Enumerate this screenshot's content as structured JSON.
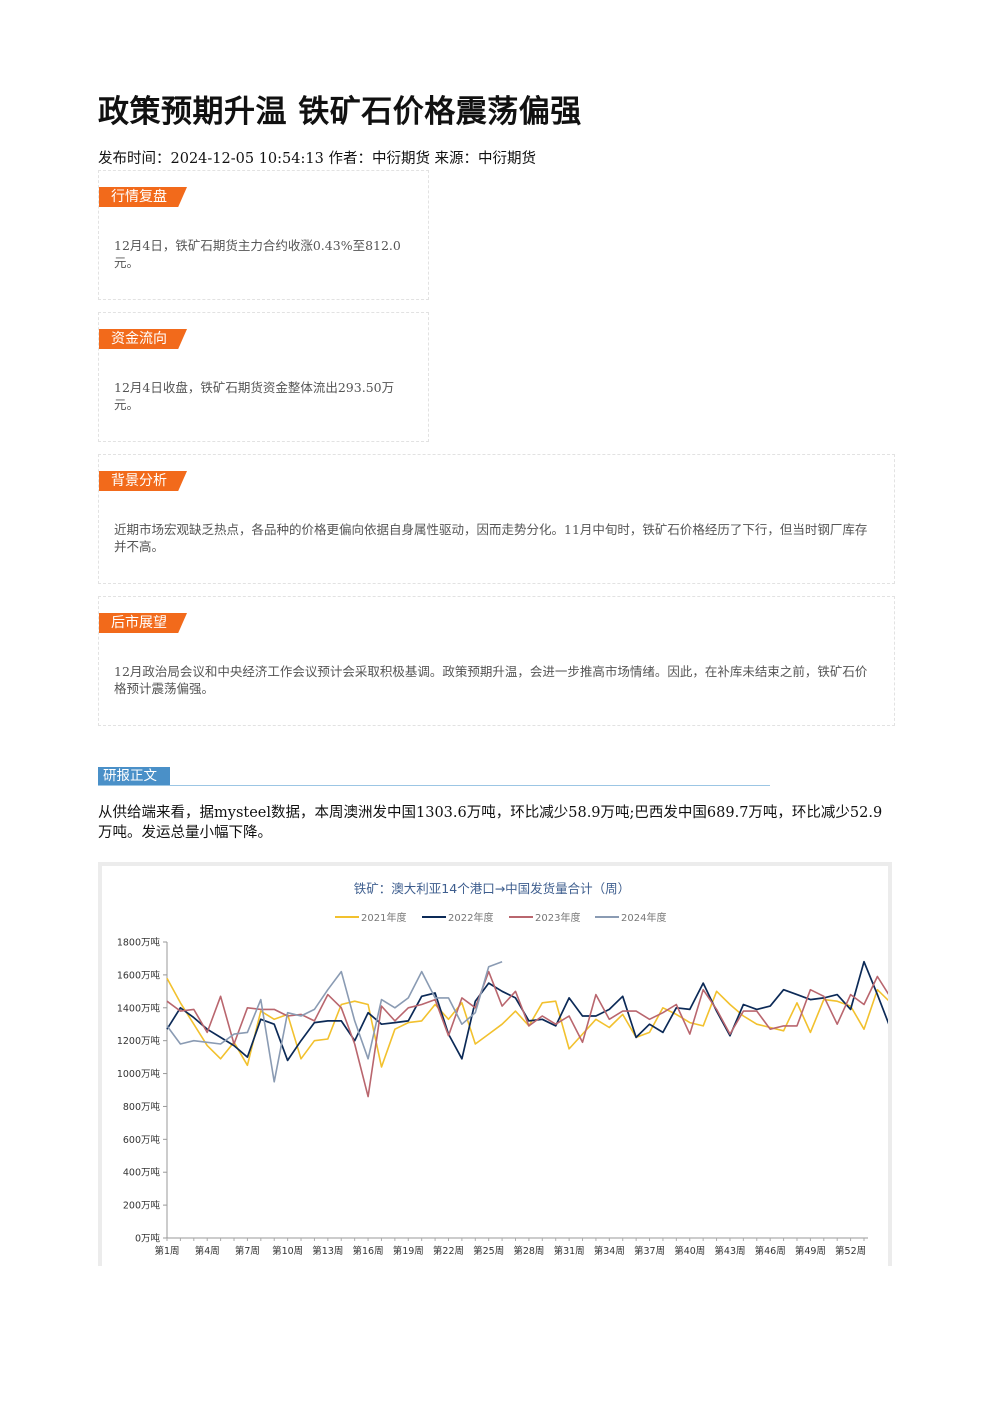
{
  "article": {
    "title": "政策预期升温 铁矿石价格震荡偏强",
    "meta": "发布时间：2024-12-05 10:54:13 作者：中衍期货 来源：中衍期货"
  },
  "sections": {
    "market": {
      "tag": "行情复盘",
      "text": "12月4日，铁矿石期货主力合约收涨0.43%至812.0元。"
    },
    "funds": {
      "tag": "资金流向",
      "text": "12月4日收盘，铁矿石期货资金整体流出293.50万元。"
    },
    "background": {
      "tag": "背景分析",
      "text": "近期市场宏观缺乏热点，各品种的价格更偏向依据自身属性驱动，因而走势分化。11月中旬时，铁矿石价格经历了下行，但当时钢厂库存并不高。"
    },
    "outlook": {
      "tag": "后市展望",
      "text": "12月政治局会议和中央经济工作会议预计会采取积极基调。政策预期升温，会进一步推高市场情绪。因此，在补库未结束之前，铁矿石价格预计震荡偏强。"
    }
  },
  "report": {
    "tag": "研报正文",
    "paragraph": "从供给端来看，据mysteel数据，本周澳洲发中国1303.6万吨，环比减少58.9万吨;巴西发中国689.7万吨，环比减少52.9万吨。发运总量小幅下降。"
  },
  "chart_data": {
    "type": "line",
    "title": "铁矿：澳大利亚14个港口→中国发货量合计（周）",
    "ylim": [
      0,
      1800
    ],
    "y_ticks": [
      "0万吨",
      "200万吨",
      "400万吨",
      "600万吨",
      "800万吨",
      "1000万吨",
      "1200万吨",
      "1400万吨",
      "1600万吨",
      "1800万吨"
    ],
    "x_ticks": [
      "第1周",
      "第4周",
      "第7周",
      "第10周",
      "第13周",
      "第16周",
      "第19周",
      "第22周",
      "第25周",
      "第28周",
      "第31周",
      "第34周",
      "第37周",
      "第40周",
      "第43周",
      "第46周",
      "第49周",
      "第52周"
    ],
    "x_tick_weeks": [
      1,
      4,
      7,
      10,
      13,
      16,
      19,
      22,
      25,
      28,
      31,
      34,
      37,
      40,
      43,
      46,
      49,
      52
    ],
    "legend_position": "top",
    "series": [
      {
        "name": "2021年度",
        "color": "#f2c12e",
        "values": [
          1580,
          1430,
          1300,
          1170,
          1090,
          1190,
          1050,
          1380,
          1330,
          1360,
          1090,
          1200,
          1210,
          1420,
          1440,
          1420,
          1040,
          1270,
          1310,
          1320,
          1420,
          1330,
          1430,
          1180,
          1240,
          1300,
          1380,
          1290,
          1430,
          1440,
          1150,
          1240,
          1330,
          1280,
          1360,
          1220,
          1250,
          1400,
          1360,
          1310,
          1290,
          1500,
          1420,
          1350,
          1300,
          1280,
          1260,
          1430,
          1250,
          1450,
          1440,
          1410,
          1270,
          1510,
          1430,
          1570
        ]
      },
      {
        "name": "2022年度",
        "color": "#0c2a57",
        "values": [
          1270,
          1400,
          1340,
          1270,
          1220,
          1170,
          1100,
          1330,
          1300,
          1080,
          1200,
          1310,
          1320,
          1320,
          1200,
          1370,
          1300,
          1310,
          1320,
          1470,
          1490,
          1240,
          1090,
          1440,
          1550,
          1500,
          1460,
          1320,
          1330,
          1290,
          1460,
          1350,
          1350,
          1390,
          1470,
          1220,
          1300,
          1250,
          1400,
          1390,
          1550,
          1380,
          1230,
          1420,
          1390,
          1410,
          1510,
          1480,
          1450,
          1460,
          1480,
          1390,
          1680,
          1480,
          1270
        ]
      },
      {
        "name": "2023年度",
        "color": "#b9666e",
        "values": [
          1440,
          1380,
          1390,
          1250,
          1470,
          1180,
          1400,
          1390,
          1390,
          1350,
          1360,
          1320,
          1480,
          1400,
          1180,
          860,
          1410,
          1320,
          1400,
          1420,
          1450,
          1230,
          1460,
          1400,
          1620,
          1410,
          1500,
          1290,
          1350,
          1300,
          1350,
          1190,
          1480,
          1330,
          1380,
          1380,
          1330,
          1370,
          1420,
          1240,
          1510,
          1390,
          1240,
          1380,
          1380,
          1270,
          1290,
          1290,
          1510,
          1470,
          1300,
          1480,
          1420,
          1590,
          1460,
          1370
        ]
      },
      {
        "name": "2024年度",
        "color": "#8a9bb3",
        "values": [
          1290,
          1180,
          1200,
          1190,
          1180,
          1240,
          1250,
          1450,
          950,
          1370,
          1350,
          1390,
          1510,
          1620,
          1320,
          1090,
          1450,
          1400,
          1460,
          1620,
          1460,
          1460,
          1300,
          1370,
          1650,
          1680
        ]
      }
    ]
  }
}
